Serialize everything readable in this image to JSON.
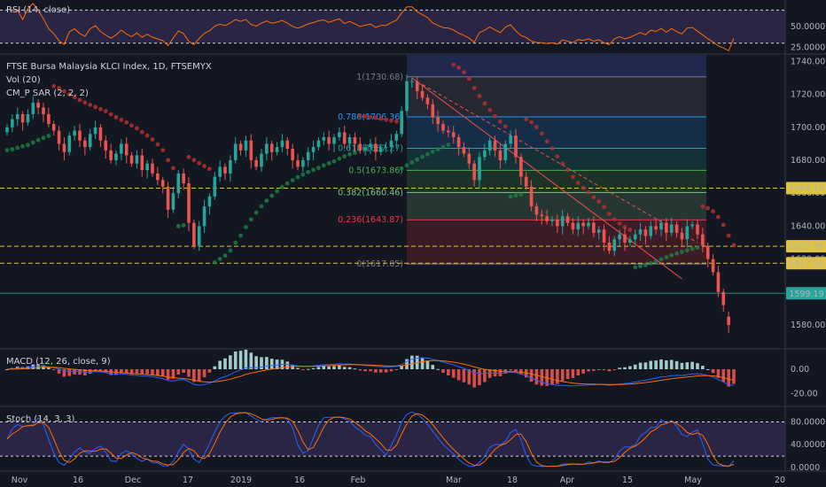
{
  "panes": {
    "rsi": {
      "label": "RSI (14, close)",
      "ticks": [
        "50.0000",
        "25.0000"
      ],
      "tick_values": [
        50,
        25
      ],
      "band": [
        30,
        70
      ]
    },
    "main": {
      "title": "FTSE Bursa Malaysia KLCI Index, 1D, FTSEMYX",
      "vol_label": "Vol (20)",
      "psar_label": "CM_P SAR (2, 2, 2)",
      "ticks": [
        "1740.00",
        "1720.00",
        "1700.00",
        "1680.00",
        "1660.00",
        "1640.00",
        "1620.00",
        "1600.00",
        "1580.00"
      ],
      "tick_values": [
        1740,
        1720,
        1700,
        1680,
        1660,
        1640,
        1620,
        1600,
        1580
      ]
    },
    "macd": {
      "label": "MACD (12, 26, close, 9)",
      "ticks": [
        "0.00",
        "-20.00"
      ],
      "tick_values": [
        0,
        -20
      ]
    },
    "stoch": {
      "label": "Stoch (14, 3, 3)",
      "ticks": [
        "80.0000",
        "40.0000",
        "0.0000"
      ],
      "tick_values": [
        80,
        40,
        0
      ],
      "band": [
        20,
        80
      ]
    }
  },
  "price_badges": [
    {
      "text": "1663.10",
      "value": 1663.1,
      "style": "outline"
    },
    {
      "text": "1627.76",
      "value": 1627.76,
      "style": "outline"
    },
    {
      "text": "1617.50",
      "value": 1617.5,
      "style": "outline"
    },
    {
      "text": "1599.19",
      "value": 1599.19,
      "style": "fill"
    }
  ],
  "fib_levels": [
    {
      "label": "1(1730.68)",
      "value": 1730.68,
      "color": "#787b86"
    },
    {
      "label": "0.786(1706.36)",
      "value": 1706.36,
      "color": "#2196f3"
    },
    {
      "label": "0.618(1687.27)",
      "value": 1687.27,
      "color": "#26a69a"
    },
    {
      "label": "0.5(1673.86)",
      "value": 1673.86,
      "color": "#4caf50"
    },
    {
      "label": "0.382(1660.46)",
      "value": 1660.46,
      "color": "#81c784"
    },
    {
      "label": "0.236(1643.87)",
      "value": 1643.87,
      "color": "#f23645"
    },
    {
      "label": "0(1617.05)",
      "value": 1617.05,
      "color": "#787b86"
    }
  ],
  "x_axis": {
    "labels": [
      "Nov",
      "16",
      "Dec",
      "17",
      "2019",
      "16",
      "Feb",
      "Mar",
      "18",
      "Apr",
      "15",
      "May",
      "20"
    ]
  },
  "colors": {
    "up": "#26a69a",
    "down": "#ef5350",
    "macd": "#2962ff",
    "signal": "#ff6d00",
    "rsi": "#ff6d00",
    "stoch_k": "#2962ff",
    "stoch_d": "#ff6d00"
  },
  "chart_data": {
    "type": "candlestick",
    "title": "FTSE Bursa Malaysia KLCI Index, 1D, FTSEMYX",
    "ylim": [
      1566,
      1744
    ],
    "ohlc_close": [
      1700,
      1705,
      1708,
      1703,
      1708,
      1715,
      1712,
      1708,
      1702,
      1698,
      1690,
      1685,
      1695,
      1698,
      1692,
      1688,
      1696,
      1700,
      1692,
      1686,
      1680,
      1684,
      1690,
      1683,
      1678,
      1683,
      1674,
      1678,
      1672,
      1668,
      1664,
      1650,
      1660,
      1672,
      1666,
      1642,
      1628,
      1640,
      1652,
      1658,
      1670,
      1676,
      1672,
      1680,
      1690,
      1686,
      1692,
      1680,
      1676,
      1684,
      1690,
      1685,
      1688,
      1692,
      1687,
      1680,
      1676,
      1680,
      1685,
      1688,
      1692,
      1694,
      1690,
      1694,
      1697,
      1690,
      1694,
      1690,
      1686,
      1688,
      1690,
      1685,
      1688,
      1688,
      1692,
      1696,
      1710,
      1728,
      1728,
      1722,
      1718,
      1714,
      1706,
      1702,
      1698,
      1697,
      1694,
      1688,
      1684,
      1678,
      1668,
      1682,
      1686,
      1692,
      1686,
      1680,
      1690,
      1695,
      1682,
      1670,
      1664,
      1652,
      1647,
      1646,
      1643,
      1644,
      1640,
      1646,
      1642,
      1638,
      1642,
      1640,
      1642,
      1636,
      1638,
      1630,
      1625,
      1632,
      1635,
      1630,
      1632,
      1635,
      1638,
      1634,
      1640,
      1638,
      1642,
      1636,
      1641,
      1636,
      1632,
      1640,
      1641,
      1635,
      1628,
      1620,
      1612,
      1600,
      1592,
      1580,
      1599.19
    ],
    "ohlc_open": [
      1697,
      1700,
      1705,
      1708,
      1703,
      1708,
      1715,
      1712,
      1708,
      1702,
      1698,
      1690,
      1685,
      1695,
      1698,
      1692,
      1688,
      1696,
      1700,
      1692,
      1686,
      1680,
      1684,
      1690,
      1683,
      1678,
      1683,
      1674,
      1678,
      1672,
      1668,
      1664,
      1650,
      1660,
      1672,
      1666,
      1642,
      1628,
      1640,
      1652,
      1658,
      1670,
      1676,
      1672,
      1680,
      1690,
      1686,
      1692,
      1680,
      1676,
      1684,
      1690,
      1685,
      1688,
      1692,
      1687,
      1680,
      1676,
      1680,
      1685,
      1688,
      1692,
      1694,
      1690,
      1694,
      1697,
      1690,
      1694,
      1690,
      1686,
      1688,
      1690,
      1685,
      1688,
      1688,
      1692,
      1696,
      1710,
      1728,
      1728,
      1722,
      1718,
      1714,
      1706,
      1702,
      1698,
      1697,
      1694,
      1688,
      1684,
      1678,
      1668,
      1682,
      1686,
      1692,
      1686,
      1680,
      1690,
      1695,
      1682,
      1670,
      1664,
      1652,
      1647,
      1646,
      1643,
      1644,
      1640,
      1646,
      1642,
      1638,
      1642,
      1640,
      1642,
      1636,
      1638,
      1630,
      1625,
      1632,
      1635,
      1630,
      1632,
      1635,
      1638,
      1634,
      1640,
      1638,
      1642,
      1636,
      1641,
      1636,
      1632,
      1640,
      1641,
      1635,
      1628,
      1620,
      1612,
      1600,
      1585
    ]
  }
}
